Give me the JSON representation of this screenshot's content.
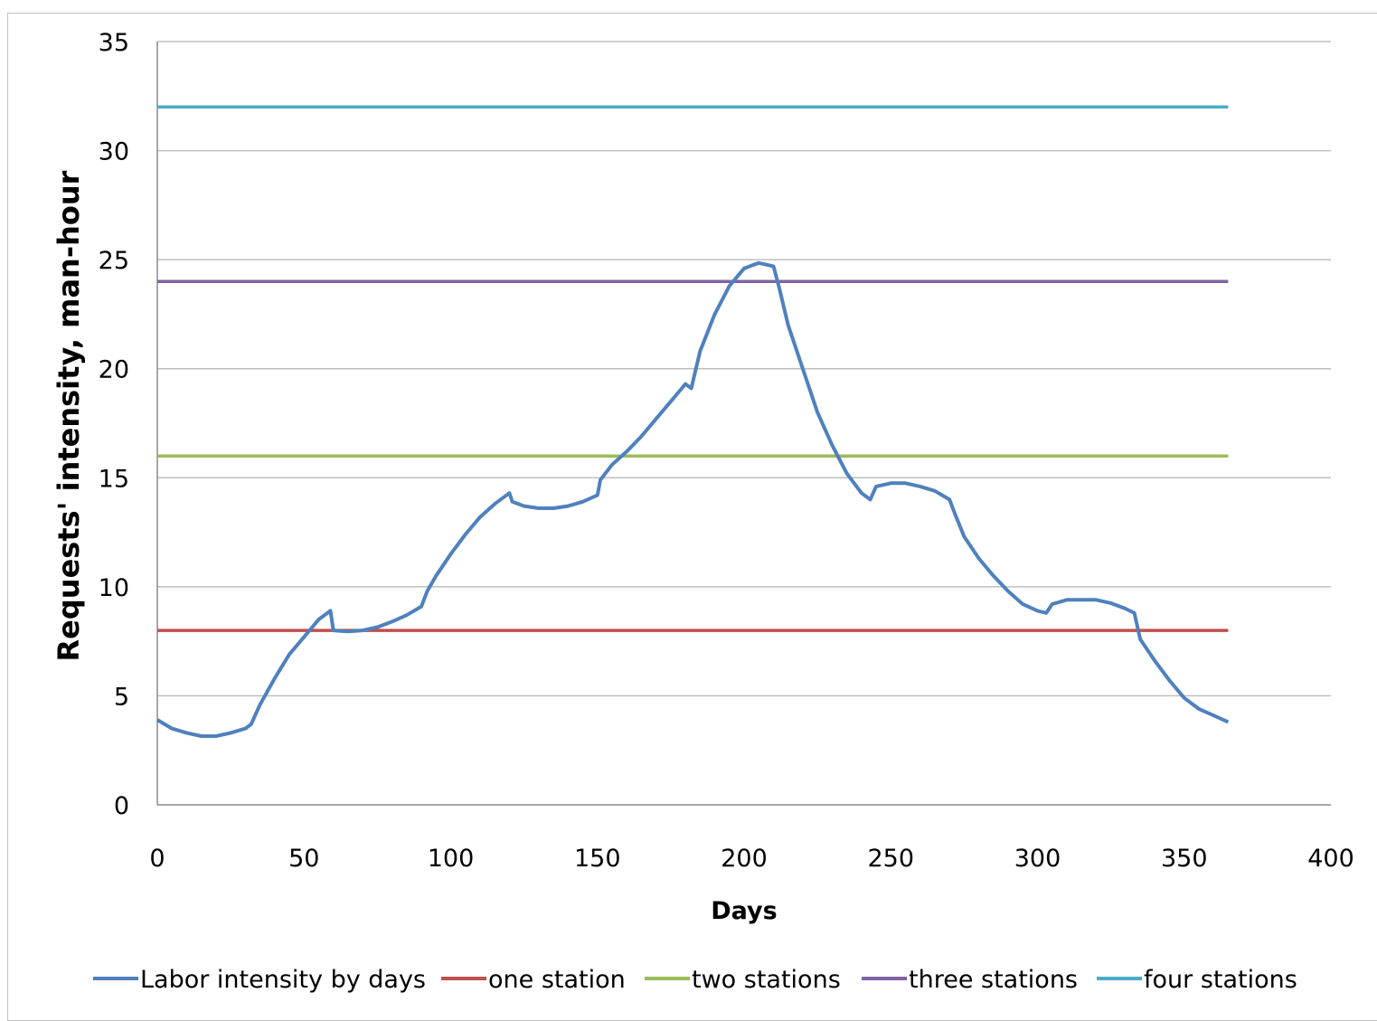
{
  "chart_data": {
    "type": "line",
    "title": "",
    "xlabel": "Days",
    "ylabel": "Requests' intensity, man-hour",
    "xlim": [
      0,
      400
    ],
    "ylim": [
      0,
      35
    ],
    "x_ticks": [
      0,
      50,
      100,
      150,
      200,
      250,
      300,
      350,
      400
    ],
    "y_ticks": [
      0,
      5,
      10,
      15,
      20,
      25,
      30,
      35
    ],
    "grid": "horizontal",
    "legend_position": "bottom",
    "series": [
      {
        "name": "Labor intensity by days",
        "color": "#4f81bd",
        "x": [
          0,
          5,
          10,
          15,
          20,
          25,
          30,
          32,
          35,
          40,
          45,
          50,
          55,
          59,
          60,
          65,
          70,
          75,
          80,
          85,
          90,
          92,
          95,
          100,
          105,
          110,
          115,
          120,
          121,
          125,
          130,
          135,
          140,
          145,
          150,
          151,
          155,
          160,
          165,
          170,
          175,
          180,
          182,
          185,
          190,
          195,
          200,
          205,
          210,
          212,
          215,
          220,
          225,
          230,
          235,
          240,
          243,
          245,
          250,
          255,
          260,
          265,
          270,
          272,
          275,
          280,
          285,
          290,
          295,
          300,
          303,
          305,
          310,
          315,
          320,
          325,
          330,
          333,
          335,
          340,
          345,
          350,
          355,
          360,
          365
        ],
        "y": [
          3.9,
          3.5,
          3.3,
          3.15,
          3.15,
          3.3,
          3.5,
          3.7,
          4.6,
          5.8,
          6.9,
          7.7,
          8.5,
          8.9,
          8.0,
          7.95,
          8.0,
          8.15,
          8.4,
          8.7,
          9.1,
          9.8,
          10.5,
          11.5,
          12.4,
          13.2,
          13.8,
          14.3,
          13.9,
          13.7,
          13.6,
          13.6,
          13.7,
          13.9,
          14.2,
          14.9,
          15.6,
          16.2,
          16.9,
          17.7,
          18.5,
          19.3,
          19.1,
          20.8,
          22.5,
          23.8,
          24.6,
          24.85,
          24.7,
          23.7,
          22.0,
          20.0,
          18.0,
          16.5,
          15.2,
          14.3,
          14.0,
          14.6,
          14.75,
          14.75,
          14.6,
          14.4,
          14.0,
          13.3,
          12.3,
          11.3,
          10.5,
          9.8,
          9.2,
          8.9,
          8.8,
          9.2,
          9.4,
          9.4,
          9.4,
          9.25,
          9.0,
          8.8,
          7.6,
          6.6,
          5.7,
          4.9,
          4.4,
          4.1,
          3.8
        ]
      },
      {
        "name": "one station",
        "color": "#c0504d",
        "x": [
          0,
          365
        ],
        "y": [
          8,
          8
        ]
      },
      {
        "name": "two stations",
        "color": "#9bbb59",
        "x": [
          0,
          365
        ],
        "y": [
          16,
          16
        ]
      },
      {
        "name": "three stations",
        "color": "#8064a2",
        "x": [
          0,
          365
        ],
        "y": [
          24,
          24
        ]
      },
      {
        "name": "four stations",
        "color": "#4bacc6",
        "x": [
          0,
          365
        ],
        "y": [
          32,
          32
        ]
      }
    ]
  }
}
